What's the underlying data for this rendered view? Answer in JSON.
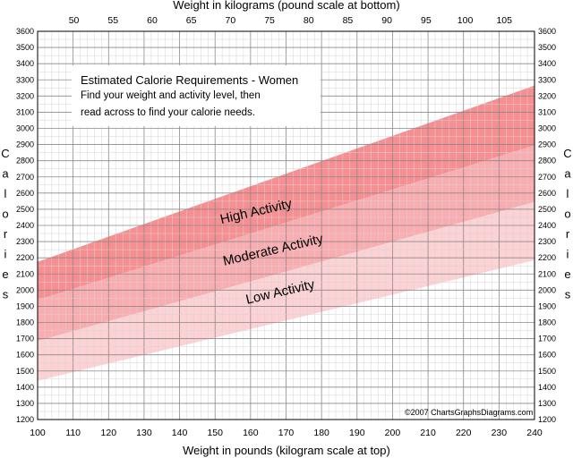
{
  "chart_data": {
    "type": "area",
    "title": "Estimated Calorie Requirements - Women",
    "instructions": [
      "Find your weight and activity level, then",
      "read across to find your calorie needs."
    ],
    "xlabel": "Weight in pounds (kilogram scale at top)",
    "x2label": "Weight in kilograms (pound scale at bottom)",
    "ylabel": "Calories",
    "xlim": [
      100,
      240
    ],
    "ylim": [
      1200,
      3600
    ],
    "x_ticks": [
      100,
      110,
      120,
      130,
      140,
      150,
      160,
      170,
      180,
      190,
      200,
      210,
      220,
      230,
      240
    ],
    "x2_ticks": [
      50,
      55,
      60,
      65,
      70,
      75,
      80,
      85,
      90,
      95,
      100,
      105
    ],
    "y_ticks": [
      1200,
      1300,
      1400,
      1500,
      1600,
      1700,
      1800,
      1900,
      2000,
      2100,
      2200,
      2300,
      2400,
      2500,
      2600,
      2700,
      2800,
      2900,
      3000,
      3100,
      3200,
      3300,
      3400,
      3500,
      3600
    ],
    "grid": true,
    "series": [
      {
        "name": "High Activity",
        "color": "#f78f92",
        "lower": [
          [
            100,
            1940
          ],
          [
            240,
            2895
          ]
        ],
        "upper": [
          [
            100,
            2175
          ],
          [
            240,
            3265
          ]
        ]
      },
      {
        "name": "Moderate Activity",
        "color": "#faadb0",
        "lower": [
          [
            100,
            1685
          ],
          [
            240,
            2545
          ]
        ],
        "upper": [
          [
            100,
            1940
          ],
          [
            240,
            2895
          ]
        ]
      },
      {
        "name": "Low Activity",
        "color": "#fcd2d5",
        "lower": [
          [
            100,
            1440
          ],
          [
            240,
            2185
          ]
        ],
        "upper": [
          [
            100,
            1685
          ],
          [
            240,
            2545
          ]
        ]
      }
    ],
    "copyright": "©2007 ChartsGraphsDiagrams.com"
  }
}
